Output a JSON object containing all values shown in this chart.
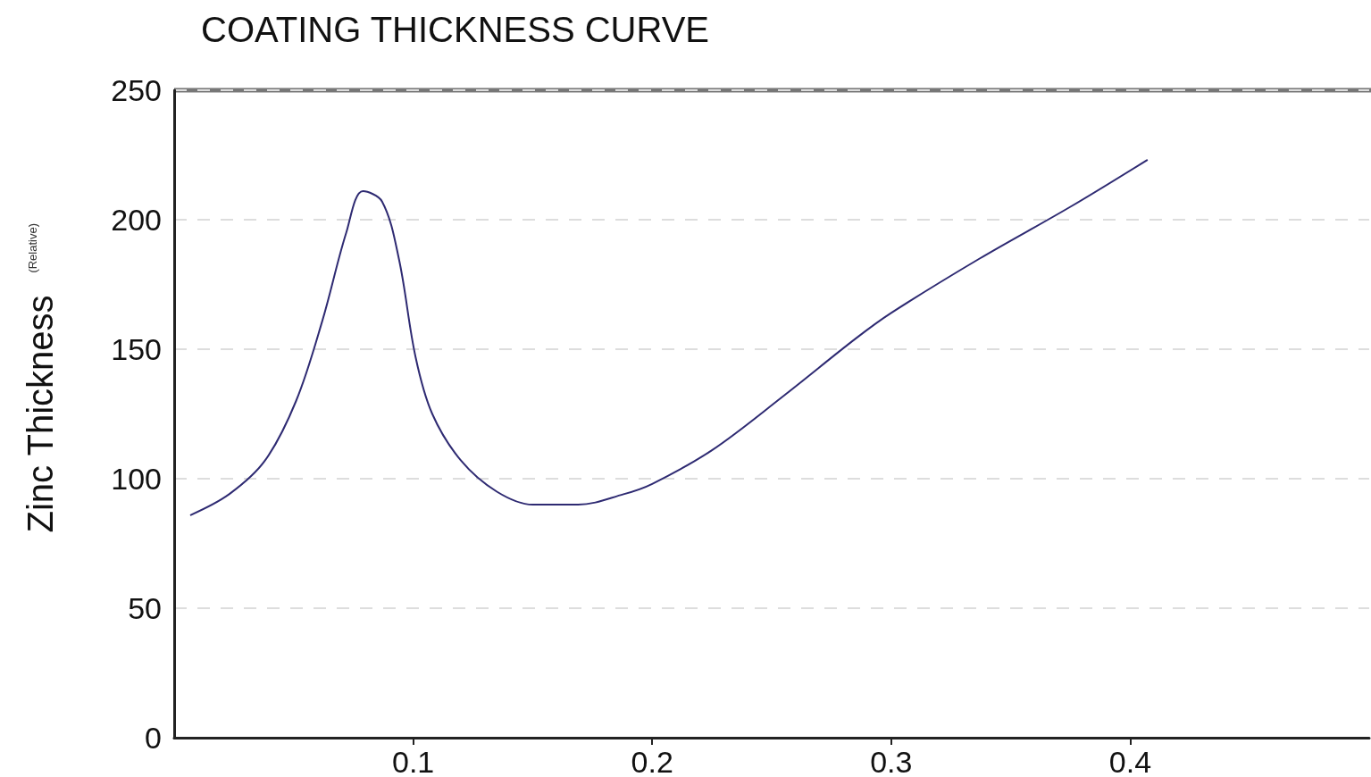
{
  "chart_data": {
    "type": "line",
    "title": "COATING THICKNESS CURVE",
    "ylabel": "Zinc Thickness",
    "annotations": [
      "(Relative)"
    ],
    "series": [
      {
        "color": "#2e2a72",
        "x": [
          0.007,
          0.023,
          0.038,
          0.051,
          0.062,
          0.072,
          0.079,
          0.087,
          0.094,
          0.101,
          0.108,
          0.12,
          0.135,
          0.15,
          0.169,
          0.188,
          0.2,
          0.225,
          0.255,
          0.285,
          0.3,
          0.337,
          0.375,
          0.407
        ],
        "values": [
          86,
          94,
          107,
          130,
          161,
          195,
          211,
          207,
          185,
          147,
          125,
          107,
          95,
          90,
          90,
          94,
          98,
          111,
          132,
          154,
          164,
          185,
          205,
          223
        ]
      }
    ],
    "xlim": [
      0,
      0.5
    ],
    "xticks": [
      0.1,
      0.2,
      0.3,
      0.4
    ],
    "ylim": [
      0,
      250
    ],
    "yticks": [
      0,
      50,
      100,
      150,
      200,
      250
    ],
    "grid": "y",
    "marker": "none",
    "line_style": "solid"
  }
}
